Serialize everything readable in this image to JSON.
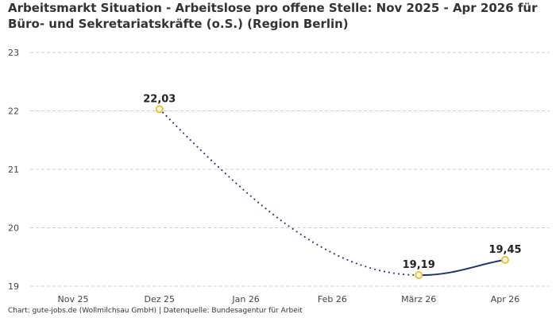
{
  "header": {
    "title": "Arbeitsmarkt Situation - Arbeitslose pro offene Stelle: Nov 2025 - Apr 2026 für Büro- und Sekretariatskräfte (o.S.) (Region Berlin)"
  },
  "footer": {
    "source": "Chart: gute-jobs.de (Wollmilchsau GmbH) | Datenquelle: Bundesagentur für Arbeit"
  },
  "colors": {
    "line": "#1f2f7a",
    "marker_stroke": "#f2c12e",
    "marker_fill": "#ffffff",
    "grid": "#cfcfcf"
  },
  "chart_data": {
    "type": "line",
    "categories": [
      "Nov 25",
      "Dez 25",
      "Jan 26",
      "Feb 26",
      "März 26",
      "Apr 26"
    ],
    "ylim": [
      19,
      23
    ],
    "yticks": [
      19,
      20,
      21,
      22,
      23
    ],
    "ytick_labels": [
      "19",
      "20",
      "21",
      "22",
      "23"
    ],
    "grid": true,
    "points": [
      {
        "category": "Dez 25",
        "value": 22.03,
        "label": "22,03"
      },
      {
        "category": "März 26",
        "value": 19.19,
        "label": "19,19"
      },
      {
        "category": "Apr 26",
        "value": 19.45,
        "label": "19,45"
      }
    ],
    "segments": [
      {
        "from": "Dez 25",
        "to": "März 26",
        "style": "dotted"
      },
      {
        "from": "März 26",
        "to": "Apr 26",
        "style": "solid"
      }
    ]
  }
}
